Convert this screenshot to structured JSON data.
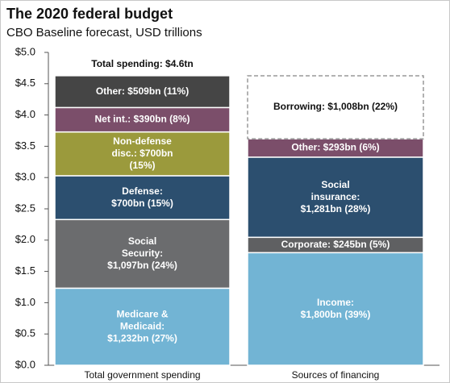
{
  "chart_data": {
    "type": "stacked-bar",
    "title": "The 2020 federal budget",
    "subtitle": "CBO Baseline forecast, USD trillions",
    "annotation": "Total spending: $4.6tn",
    "ylim": [
      0,
      5
    ],
    "yticks": [
      {
        "value": 0,
        "label": "$0.0"
      },
      {
        "value": 0.5,
        "label": "$0.5"
      },
      {
        "value": 1,
        "label": "$1.0"
      },
      {
        "value": 1.5,
        "label": "$1.5"
      },
      {
        "value": 2,
        "label": "$2.0"
      },
      {
        "value": 2.5,
        "label": "$2.5"
      },
      {
        "value": 3,
        "label": "$3.0"
      },
      {
        "value": 3.5,
        "label": "$3.5"
      },
      {
        "value": 4,
        "label": "$4.0"
      },
      {
        "value": 4.5,
        "label": "$4.5"
      },
      {
        "value": 5,
        "label": "$5.0"
      }
    ],
    "categories": [
      "Total government spending",
      "Sources of financing"
    ],
    "stacks": [
      {
        "values": [
          1.232,
          1.097,
          0.7,
          0.7,
          0.39,
          0.509
        ],
        "value_labels": [
          [
            "Medicare &",
            "Medicaid:",
            "$1,232bn (27%)"
          ],
          [
            "Social",
            "Security:",
            "$1,097bn (24%)"
          ],
          [
            "Defense:",
            "$700bn (15%)"
          ],
          [
            "Non-defense",
            "disc.: $700bn",
            "(15%)"
          ],
          [
            "Net int.: $390bn (8%)"
          ],
          [
            "Other: $509bn (11%)"
          ]
        ],
        "colors": [
          "#72b4d4",
          "#6b6c6e",
          "#2c4f6f",
          "#9b9a3c",
          "#7b4e6a",
          "#454545"
        ],
        "dashed": [
          false,
          false,
          false,
          false,
          false,
          false
        ]
      },
      {
        "values": [
          1.8,
          0.245,
          1.281,
          0.293,
          1.008
        ],
        "value_labels": [
          [
            "Income:",
            "$1,800bn (39%)"
          ],
          [
            "Corporate: $245bn (5%)"
          ],
          [
            "Social",
            "insurance:",
            "$1,281bn (28%)"
          ],
          [
            "Other: $293bn (6%)"
          ],
          [
            "Borrowing: $1,008bn (22%)"
          ]
        ],
        "colors": [
          "#72b4d4",
          "#5f6062",
          "#2c4f6f",
          "#7b4e6a",
          "#ffffff"
        ],
        "dashed": [
          false,
          false,
          false,
          false,
          true
        ]
      }
    ]
  }
}
